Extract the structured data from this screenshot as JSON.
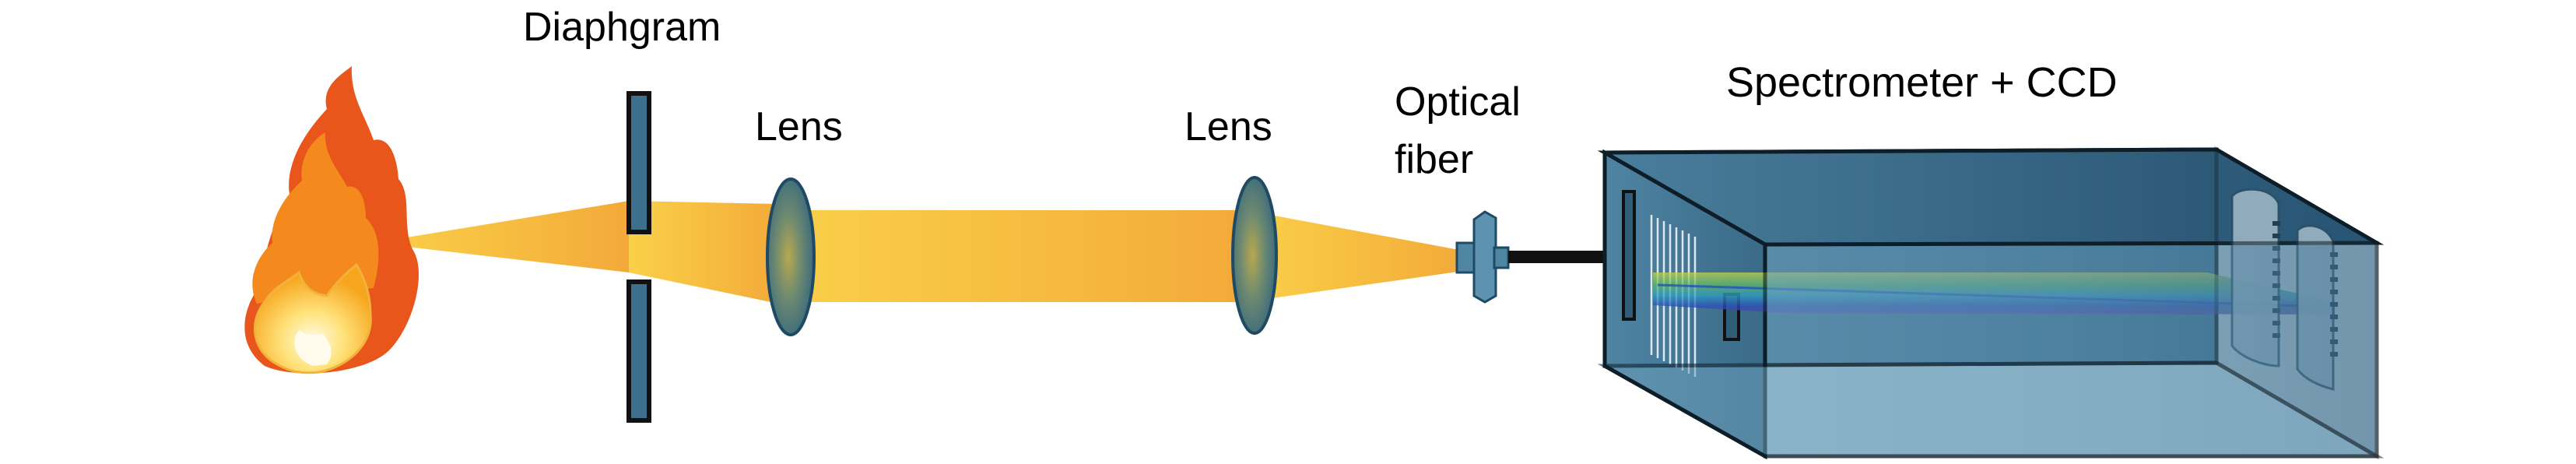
{
  "labels": {
    "diaphragm": "Diaphgram",
    "lens_1": "Lens",
    "lens_2": "Lens",
    "fiber_line1": "Optical",
    "fiber_line2": "fiber",
    "spectrometer": "Spectrometer + CCD"
  },
  "colors": {
    "beam": "#F8BE3C",
    "component": "#3E6F8C",
    "box_front": "#4E86A6",
    "box_top": "#2E5E7C",
    "outline": "#111111"
  },
  "icons": {
    "source": "flame-icon"
  }
}
